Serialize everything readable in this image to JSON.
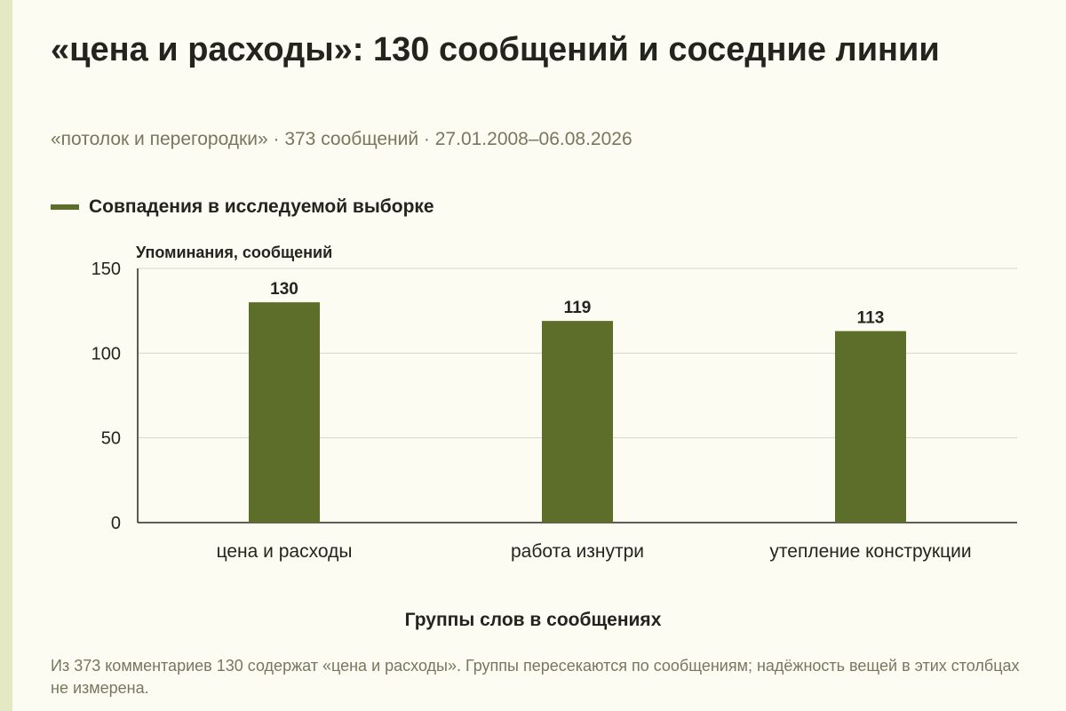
{
  "title": "«цена и расходы»: 130 сообщений и соседние линии",
  "subtitle": "«потолок и перегородки» · 373 сообщений · 27.01.2008–06.08.2026",
  "legend": {
    "label": "Совпадения в исследуемой выборке"
  },
  "note": "Из 373 комментариев 130 содержат «цена и расходы». Группы пересекаются по сообщениям; надёжность вещей в этих столбцах не измерена.",
  "colors": {
    "bar": "#5c6e2a",
    "background": "#fdfcf2",
    "accent_strip": "#e4e9c4"
  },
  "chart_data": {
    "type": "bar",
    "title": "«цена и расходы»: 130 сообщений и соседние линии",
    "xlabel": "Группы слов в сообщениях",
    "ylabel": "Упоминания, сообщений",
    "categories": [
      "цена и расходы",
      "работа изнутри",
      "утепление конструкции"
    ],
    "series": [
      {
        "name": "Совпадения в исследуемой выборке",
        "values": [
          130,
          119,
          113
        ]
      }
    ],
    "ylim": [
      0,
      150
    ],
    "yticks": [
      0,
      50,
      100,
      150
    ],
    "grid": true,
    "legend_position": "top-left"
  }
}
